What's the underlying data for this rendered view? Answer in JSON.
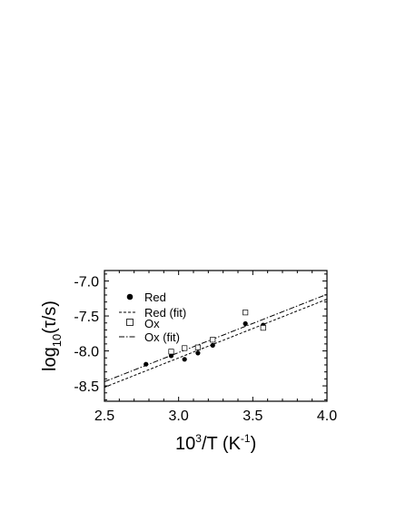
{
  "chart_data": {
    "type": "scatter",
    "title": "",
    "xlabel": {
      "base": "10",
      "exp": "3",
      "rest": "/T (K",
      "unit_exp": "-1",
      "close": ")"
    },
    "ylabel": {
      "pre": "log",
      "sub": "10",
      "post": "(τ/s)"
    },
    "xlim": [
      2.5,
      4.0
    ],
    "ylim": [
      -8.72,
      -6.85
    ],
    "xticks": [
      2.5,
      3.0,
      3.5,
      4.0
    ],
    "xtick_labels": [
      "2.5",
      "3.0",
      "3.5",
      "4.0"
    ],
    "yticks": [
      -8.5,
      -8.0,
      -7.5,
      -7.0
    ],
    "ytick_labels": [
      "-8.5",
      "-8.0",
      "-7.5",
      "-7.0"
    ],
    "grid": false,
    "legend_position": "top-left",
    "series": [
      {
        "name": "Red",
        "style": "filled-circle",
        "points": [
          [
            2.78,
            -8.19
          ],
          [
            2.95,
            -8.07
          ],
          [
            3.04,
            -8.12
          ],
          [
            3.13,
            -8.03
          ],
          [
            3.23,
            -7.92
          ],
          [
            3.45,
            -7.61
          ],
          [
            3.57,
            -7.63
          ]
        ]
      },
      {
        "name": "Red (fit)",
        "style": "dashed-line",
        "points": [
          [
            2.5,
            -8.52
          ],
          [
            4.0,
            -7.26
          ]
        ]
      },
      {
        "name": "Ox",
        "style": "open-square",
        "points": [
          [
            2.95,
            -8.01
          ],
          [
            3.04,
            -7.96
          ],
          [
            3.13,
            -7.95
          ],
          [
            3.23,
            -7.84
          ],
          [
            3.45,
            -7.45
          ],
          [
            3.57,
            -7.67
          ]
        ]
      },
      {
        "name": "Ox (fit)",
        "style": "dash-dot-line",
        "points": [
          [
            2.5,
            -8.44
          ],
          [
            4.0,
            -7.19
          ]
        ]
      }
    ]
  }
}
